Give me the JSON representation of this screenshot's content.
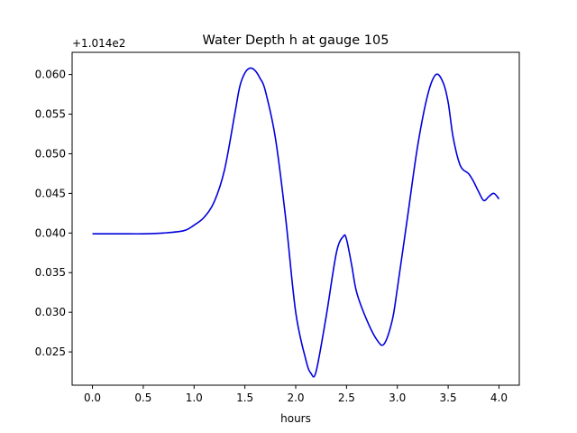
{
  "chart_data": {
    "type": "line",
    "title": "Water Depth h at gauge 105",
    "xlabel": "hours",
    "ylabel": "",
    "y_offset_label": "+1.014e2",
    "xlim": [
      -0.2,
      4.2
    ],
    "ylim": [
      0.0208,
      0.0628
    ],
    "x_ticks": [
      0.0,
      0.5,
      1.0,
      1.5,
      2.0,
      2.5,
      3.0,
      3.5,
      4.0
    ],
    "x_tick_labels": [
      "0.0",
      "0.5",
      "1.0",
      "1.5",
      "2.0",
      "2.5",
      "3.0",
      "3.5",
      "4.0"
    ],
    "y_ticks": [
      0.025,
      0.03,
      0.035,
      0.04,
      0.045,
      0.05,
      0.055,
      0.06
    ],
    "y_tick_labels": [
      "0.025",
      "0.030",
      "0.035",
      "0.040",
      "0.045",
      "0.050",
      "0.055",
      "0.060"
    ],
    "grid": false,
    "legend": "none",
    "series": [
      {
        "color": "#0000dd",
        "x": [
          0.0,
          0.1,
          0.3,
          0.5,
          0.7,
          0.9,
          1.0,
          1.1,
          1.2,
          1.3,
          1.4,
          1.45,
          1.5,
          1.55,
          1.6,
          1.65,
          1.7,
          1.8,
          1.9,
          2.0,
          2.1,
          2.15,
          2.2,
          2.3,
          2.4,
          2.47,
          2.5,
          2.55,
          2.6,
          2.7,
          2.8,
          2.87,
          2.95,
          3.0,
          3.1,
          3.2,
          3.3,
          3.38,
          3.45,
          3.5,
          3.55,
          3.62,
          3.7,
          3.75,
          3.8,
          3.85,
          3.9,
          3.95,
          4.0
        ],
        "y": [
          0.0399,
          0.0399,
          0.0399,
          0.0399,
          0.04,
          0.0403,
          0.041,
          0.042,
          0.044,
          0.048,
          0.055,
          0.0585,
          0.0602,
          0.0608,
          0.0605,
          0.0595,
          0.058,
          0.052,
          0.042,
          0.03,
          0.024,
          0.0223,
          0.0225,
          0.0295,
          0.0375,
          0.0396,
          0.0392,
          0.036,
          0.0325,
          0.029,
          0.0265,
          0.026,
          0.029,
          0.033,
          0.042,
          0.051,
          0.0575,
          0.06,
          0.059,
          0.0565,
          0.052,
          0.0485,
          0.0475,
          0.0465,
          0.0452,
          0.0441,
          0.0446,
          0.045,
          0.0443
        ]
      }
    ]
  }
}
